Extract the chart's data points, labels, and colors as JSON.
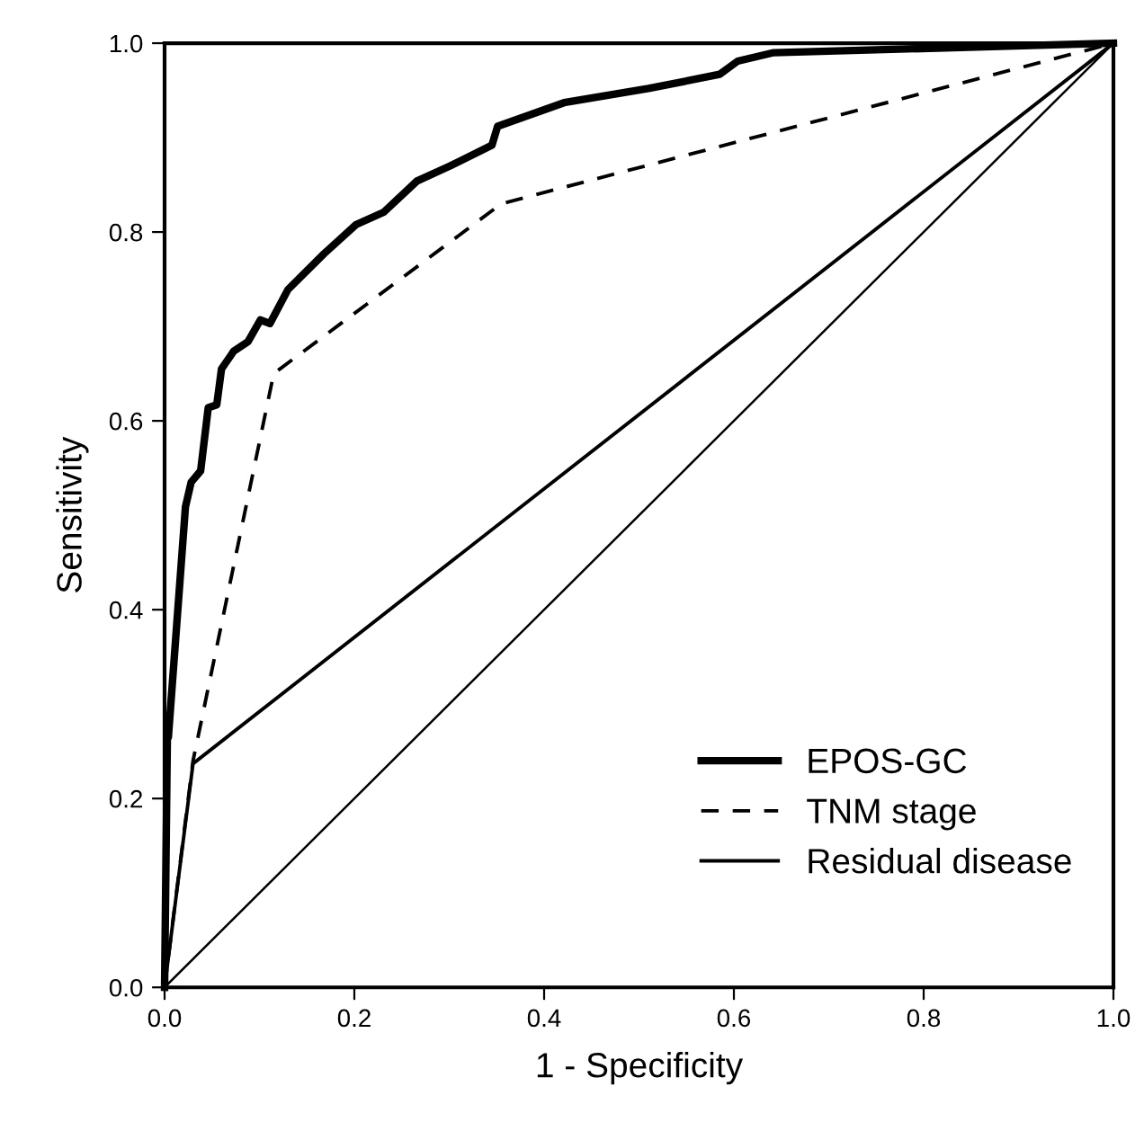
{
  "chart_data": {
    "type": "line",
    "xlabel": "1 - Specificity",
    "ylabel": "Sensitivity",
    "xlim": [
      0,
      1
    ],
    "ylim": [
      0,
      1
    ],
    "xticks": [
      {
        "value": 0,
        "label": "0.0"
      },
      {
        "value": 0.2,
        "label": "0.2"
      },
      {
        "value": 0.4,
        "label": "0.4"
      },
      {
        "value": 0.6,
        "label": "0.6"
      },
      {
        "value": 0.8,
        "label": "0.8"
      },
      {
        "value": 1,
        "label": "1.0"
      }
    ],
    "yticks": [
      {
        "value": 0,
        "label": "0.0"
      },
      {
        "value": 0.2,
        "label": "0.2"
      },
      {
        "value": 0.4,
        "label": "0.4"
      },
      {
        "value": 0.6,
        "label": "0.6"
      },
      {
        "value": 0.8,
        "label": "0.8"
      },
      {
        "value": 1,
        "label": "1.0"
      }
    ],
    "grid": false,
    "legend": "bottom right",
    "marker": "none",
    "series": [
      {
        "name": "EPOS-GC",
        "color": "#000000",
        "line_style": "solid",
        "x": [
          0,
          0.003,
          0.004,
          0.022,
          0.028,
          0.038,
          0.046,
          0.055,
          0.06,
          0.073,
          0.088,
          0.101,
          0.111,
          0.13,
          0.168,
          0.202,
          0.231,
          0.266,
          0.301,
          0.345,
          0.351,
          0.421,
          0.51,
          0.585,
          0.604,
          0.642,
          1
        ],
        "values": [
          0,
          0.27,
          0.265,
          0.509,
          0.535,
          0.547,
          0.614,
          0.617,
          0.655,
          0.674,
          0.684,
          0.707,
          0.703,
          0.739,
          0.777,
          0.808,
          0.821,
          0.854,
          0.87,
          0.892,
          0.912,
          0.937,
          0.952,
          0.967,
          0.981,
          0.99,
          1
        ]
      },
      {
        "name": "TNM stage",
        "color": "#000000",
        "line_style": "dashed",
        "x": [
          0,
          0.03,
          0.115,
          0.355,
          1
        ],
        "values": [
          0,
          0.24,
          0.65,
          0.83,
          1
        ]
      },
      {
        "name": "Residual disease",
        "color": "#000000",
        "line_style": "solid",
        "x": [
          0,
          0.03,
          1
        ],
        "values": [
          0,
          0.237,
          1
        ]
      },
      {
        "color": "#000000",
        "line_style": "solid",
        "x": [
          0,
          1
        ],
        "values": [
          0,
          1
        ]
      }
    ]
  }
}
